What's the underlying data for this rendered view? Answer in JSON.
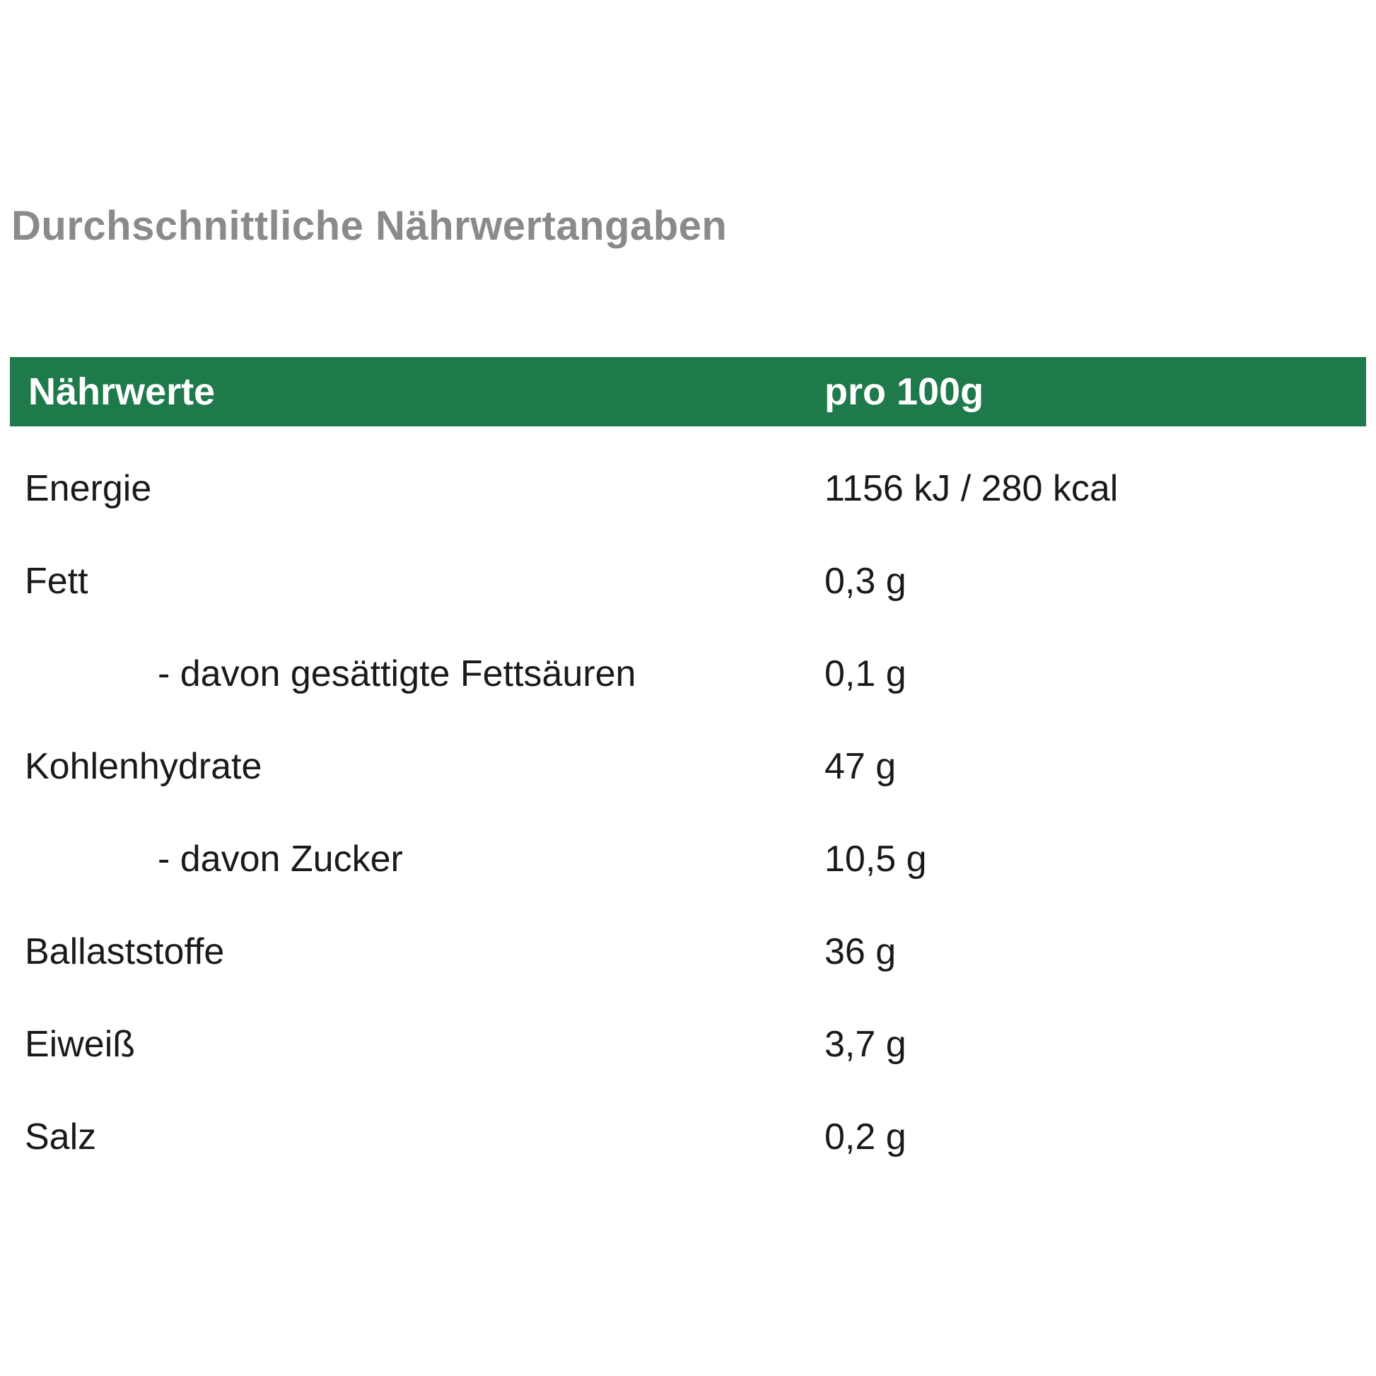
{
  "page": {
    "title": "Durchschnittliche Nährwertangaben"
  },
  "colors": {
    "header_green": "#1E7A4B",
    "title_gray": "#8A8A8A",
    "row_text": "#1A1A1A",
    "header_text": "#FFFFFF",
    "background": "#FFFFFF"
  },
  "table": {
    "header": {
      "nutrient_column": "Nährwerte",
      "amount_column": "pro 100g"
    },
    "rows": [
      {
        "label": "Energie",
        "value": "1156 kJ / 280 kcal",
        "indent": false
      },
      {
        "label": "Fett",
        "value": "0,3 g",
        "indent": false
      },
      {
        "label": "- davon gesättigte Fettsäuren",
        "value": "0,1 g",
        "indent": true
      },
      {
        "label": "Kohlenhydrate",
        "value": "47 g",
        "indent": false
      },
      {
        "label": "- davon Zucker",
        "value": "10,5 g",
        "indent": true
      },
      {
        "label": "Ballaststoffe",
        "value": "36 g",
        "indent": false
      },
      {
        "label": "Eiweiß",
        "value": "3,7 g",
        "indent": false
      },
      {
        "label": "Salz",
        "value": "0,2 g",
        "indent": false
      }
    ]
  }
}
